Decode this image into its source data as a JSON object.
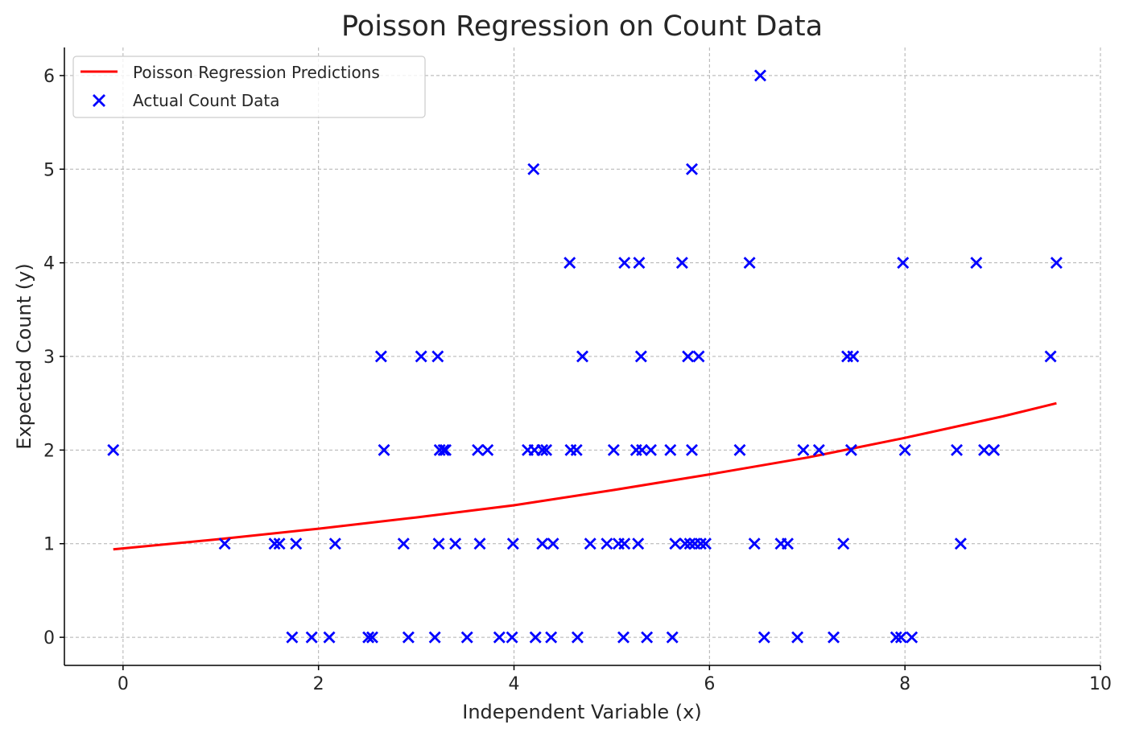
{
  "chart_data": {
    "type": "scatter",
    "title": "Poisson Regression on Count Data",
    "xlabel": "Independent Variable (x)",
    "ylabel": "Expected Count (y)",
    "xlim": [
      -0.6,
      10.0
    ],
    "ylim": [
      -0.3,
      6.3
    ],
    "x_ticks": [
      0,
      2,
      4,
      6,
      8,
      10
    ],
    "y_ticks": [
      0,
      1,
      2,
      3,
      4,
      5,
      6
    ],
    "grid": true,
    "legend_position": "top-left",
    "colors": {
      "prediction": "#ff0000",
      "actual": "#0000ff"
    },
    "series": [
      {
        "name": "Poisson Regression Predictions",
        "kind": "line",
        "x": [
          -0.1,
          1.0,
          2.0,
          3.0,
          4.0,
          5.0,
          6.0,
          7.0,
          8.0,
          9.0,
          9.55
        ],
        "y": [
          0.94,
          1.05,
          1.16,
          1.28,
          1.41,
          1.57,
          1.74,
          1.92,
          2.13,
          2.36,
          2.5
        ]
      },
      {
        "name": "Actual Count Data",
        "kind": "scatter",
        "points": [
          [
            -0.1,
            2
          ],
          [
            6.52,
            6
          ],
          [
            4.2,
            5
          ],
          [
            5.82,
            5
          ],
          [
            4.57,
            4
          ],
          [
            5.13,
            4
          ],
          [
            5.28,
            4
          ],
          [
            5.72,
            4
          ],
          [
            6.41,
            4
          ],
          [
            7.98,
            4
          ],
          [
            8.73,
            4
          ],
          [
            9.55,
            4
          ],
          [
            2.64,
            3
          ],
          [
            3.05,
            3
          ],
          [
            3.22,
            3
          ],
          [
            4.7,
            3
          ],
          [
            5.3,
            3
          ],
          [
            5.78,
            3
          ],
          [
            5.89,
            3
          ],
          [
            7.41,
            3
          ],
          [
            7.47,
            3
          ],
          [
            9.49,
            3
          ],
          [
            2.67,
            2
          ],
          [
            3.24,
            2
          ],
          [
            3.28,
            2
          ],
          [
            3.3,
            2
          ],
          [
            3.63,
            2
          ],
          [
            3.73,
            2
          ],
          [
            4.14,
            2
          ],
          [
            4.21,
            2
          ],
          [
            4.29,
            2
          ],
          [
            4.33,
            2
          ],
          [
            4.58,
            2
          ],
          [
            4.64,
            2
          ],
          [
            5.02,
            2
          ],
          [
            5.25,
            2
          ],
          [
            5.31,
            2
          ],
          [
            5.4,
            2
          ],
          [
            5.6,
            2
          ],
          [
            5.82,
            2
          ],
          [
            6.31,
            2
          ],
          [
            6.96,
            2
          ],
          [
            7.12,
            2
          ],
          [
            7.45,
            2
          ],
          [
            8.0,
            2
          ],
          [
            8.53,
            2
          ],
          [
            8.81,
            2
          ],
          [
            8.91,
            2
          ],
          [
            1.04,
            1
          ],
          [
            1.55,
            1
          ],
          [
            1.6,
            1
          ],
          [
            1.77,
            1
          ],
          [
            2.17,
            1
          ],
          [
            2.87,
            1
          ],
          [
            3.23,
            1
          ],
          [
            3.4,
            1
          ],
          [
            3.65,
            1
          ],
          [
            3.99,
            1
          ],
          [
            4.29,
            1
          ],
          [
            4.4,
            1
          ],
          [
            4.78,
            1
          ],
          [
            4.95,
            1
          ],
          [
            5.07,
            1
          ],
          [
            5.13,
            1
          ],
          [
            5.27,
            1
          ],
          [
            5.65,
            1
          ],
          [
            5.75,
            1
          ],
          [
            5.8,
            1
          ],
          [
            5.85,
            1
          ],
          [
            5.91,
            1
          ],
          [
            5.96,
            1
          ],
          [
            6.46,
            1
          ],
          [
            6.73,
            1
          ],
          [
            6.8,
            1
          ],
          [
            7.37,
            1
          ],
          [
            8.57,
            1
          ],
          [
            1.73,
            0
          ],
          [
            1.93,
            0
          ],
          [
            2.11,
            0
          ],
          [
            2.51,
            0
          ],
          [
            2.55,
            0
          ],
          [
            2.92,
            0
          ],
          [
            3.19,
            0
          ],
          [
            3.52,
            0
          ],
          [
            3.85,
            0
          ],
          [
            3.98,
            0
          ],
          [
            4.22,
            0
          ],
          [
            4.38,
            0
          ],
          [
            4.65,
            0
          ],
          [
            5.12,
            0
          ],
          [
            5.36,
            0
          ],
          [
            5.62,
            0
          ],
          [
            6.56,
            0
          ],
          [
            6.9,
            0
          ],
          [
            7.27,
            0
          ],
          [
            7.91,
            0
          ],
          [
            7.96,
            0
          ],
          [
            8.07,
            0
          ]
        ]
      }
    ]
  }
}
